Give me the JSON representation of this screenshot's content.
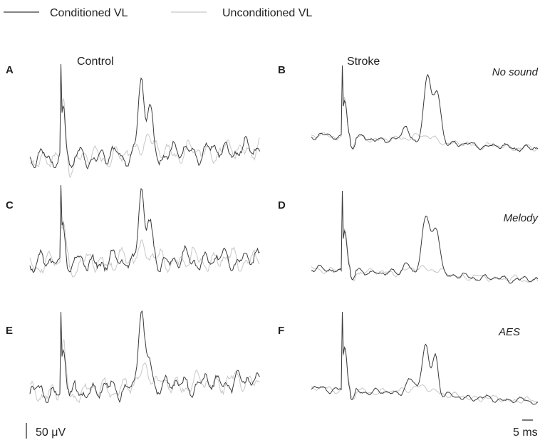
{
  "legend": {
    "items": [
      {
        "name": "Conditioned VL",
        "color": "#3a3a3a"
      },
      {
        "name": "Unconditioned VL",
        "color": "#c8c8c8"
      }
    ]
  },
  "columns": [
    "Control",
    "Stroke"
  ],
  "panels": [
    {
      "letter": "A"
    },
    {
      "letter": "B",
      "condition": "No sound"
    },
    {
      "letter": "C"
    },
    {
      "letter": "D",
      "condition": "Melody"
    },
    {
      "letter": "E"
    },
    {
      "letter": "F",
      "condition": "AES"
    }
  ],
  "scale_bars": {
    "vertical": "50 μV",
    "horizontal": "5 ms"
  }
}
